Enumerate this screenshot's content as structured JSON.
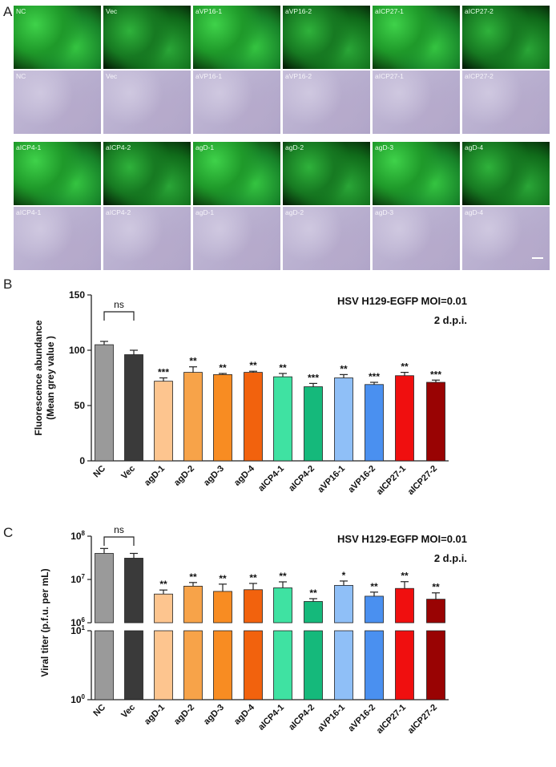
{
  "panels": {
    "a": "A",
    "b": "B",
    "c": "C"
  },
  "image_grid": {
    "rows": [
      {
        "type": "fluorescence",
        "labels": [
          "NC",
          "Vec",
          "aVP16-1",
          "aVP16-2",
          "aICP27-1",
          "aICP27-2"
        ]
      },
      {
        "type": "brightfield",
        "labels": [
          "NC",
          "Vec",
          "aVP16-1",
          "aVP16-2",
          "aICP27-1",
          "aICP27-2"
        ]
      },
      {
        "type": "fluorescence",
        "labels": [
          "aICP4-1",
          "aICP4-2",
          "agD-1",
          "agD-2",
          "agD-3",
          "agD-4"
        ]
      },
      {
        "type": "brightfield",
        "labels": [
          "aICP4-1",
          "aICP4-2",
          "agD-1",
          "agD-2",
          "agD-3",
          "agD-4"
        ]
      }
    ]
  },
  "colors": [
    "#9a9a9a",
    "#3a3a3a",
    "#fdc58f",
    "#f7a349",
    "#f88c22",
    "#f2620d",
    "#3fe2a2",
    "#15b97b",
    "#8fbff7",
    "#4a90f0",
    "#f00f0f",
    "#990303"
  ],
  "chart_data": [
    {
      "type": "bar",
      "panel": "B",
      "title": "HSV H129-EGFP MOI=0.01",
      "subtitle": "2 d.p.i.",
      "ylabel": "Fluorescence abundance (Mean grey value )",
      "ylabel_lines": [
        "Fluorescence abundance",
        "(Mean grey value )"
      ],
      "ylim": [
        0,
        150
      ],
      "yticks": [
        "0",
        "50",
        "100",
        "150"
      ],
      "categories": [
        "NC",
        "Vec",
        "agD-1",
        "agD-2",
        "agD-3",
        "agD-4",
        "aICP4-1",
        "aICP4-2",
        "aVP16-1",
        "aVP16-2",
        "aICP27-1",
        "aICP27-2"
      ],
      "values": [
        105,
        96,
        72,
        80,
        78,
        80,
        76,
        67,
        75,
        69,
        77,
        71
      ],
      "errors": [
        3,
        4,
        3,
        5,
        1,
        1,
        3,
        3,
        3,
        2,
        3,
        2
      ],
      "significance": [
        "",
        "",
        "***",
        "**",
        "**",
        "**",
        "**",
        "***",
        "**",
        "***",
        "**",
        "***"
      ],
      "comparison": {
        "from": "NC",
        "to": "Vec",
        "label": "ns"
      }
    },
    {
      "type": "bar",
      "panel": "C",
      "title": "HSV H129-EGFP MOI=0.01",
      "subtitle": "2 d.p.i.",
      "ylabel": "Viral titer (p.f.u. per mL)",
      "yscale": "log",
      "broken_axis": {
        "upper_range": [
          1000000,
          100000000
        ],
        "lower_range": [
          1,
          10
        ]
      },
      "yticks_upper": [
        {
          "base": "10",
          "exp": "8"
        },
        {
          "base": "10",
          "exp": "7"
        },
        {
          "base": "10",
          "exp": "6"
        }
      ],
      "yticks_lower": [
        {
          "base": "10",
          "exp": "1"
        },
        {
          "base": "10",
          "exp": "0"
        }
      ],
      "categories": [
        "NC",
        "Vec",
        "agD-1",
        "agD-2",
        "agD-3",
        "agD-4",
        "aICP4-1",
        "aICP4-2",
        "aVP16-1",
        "aVP16-2",
        "aICP27-1",
        "aICP27-2"
      ],
      "values": [
        40000000,
        31000000,
        4600000,
        7000000,
        5300000,
        5800000,
        6400000,
        3100000,
        7300000,
        4100000,
        6200000,
        3500000
      ],
      "errors": [
        12000000,
        9000000,
        1100000,
        1500000,
        2500000,
        2300000,
        2400000,
        500000,
        1900000,
        1000000,
        2700000,
        1400000
      ],
      "significance": [
        "",
        "",
        "**",
        "**",
        "**",
        "**",
        "**",
        "**",
        "*",
        "**",
        "**",
        "**"
      ],
      "comparison": {
        "from": "NC",
        "to": "Vec",
        "label": "ns"
      }
    }
  ]
}
